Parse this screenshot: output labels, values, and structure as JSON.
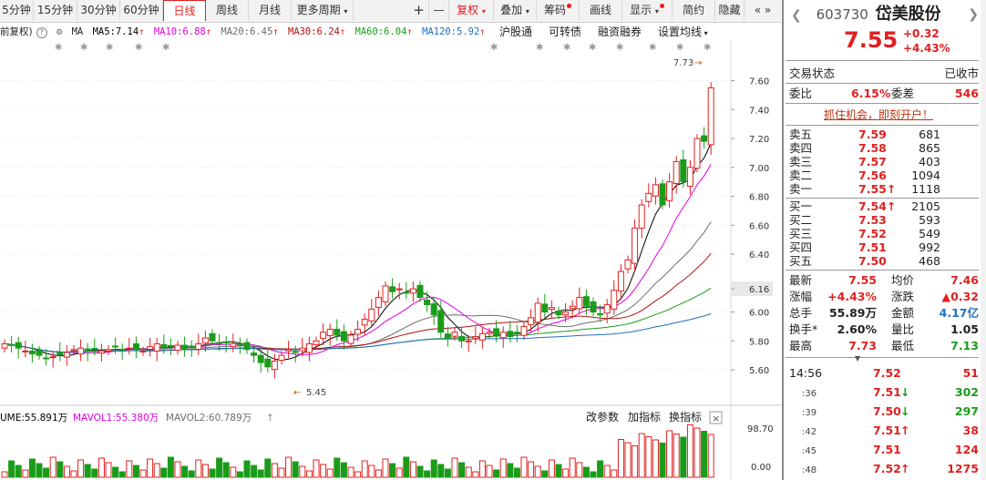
{
  "toolbar": {
    "periods": [
      "5分钟",
      "15分钟",
      "30分钟",
      "60分钟",
      "日线",
      "周线",
      "月线",
      "更多周期"
    ],
    "active_period": "日线",
    "plus": "+",
    "minus": "—",
    "fuquan": "复权",
    "diejia": "叠加",
    "chouma": "筹码",
    "huaxian": "画线",
    "xianshi": "显示",
    "jianyue": "简约",
    "yincang": "隐藏"
  },
  "legend": {
    "fuquan_label": "前复权)",
    "ma": "MA",
    "ma5": "MA5:7.14",
    "ma10": "MA10:6.88",
    "ma20": "MA20:6.45",
    "ma30": "MA30:6.24",
    "ma60": "MA60:6.04",
    "ma120": "MA120:5.92",
    "links": [
      "沪股通",
      "可转债",
      "融资融券",
      "设置均线"
    ],
    "colors": {
      "ma5": "#000000",
      "ma10": "#e000e0",
      "ma20": "#6e6e6e",
      "ma30": "#b01010",
      "ma60": "#1a9c1a",
      "ma120": "#1f6fc0"
    }
  },
  "price_axis": [
    "7.60",
    "7.40",
    "7.20",
    "7.00",
    "6.80",
    "6.60",
    "6.40",
    "6.16",
    "6.00",
    "5.80",
    "5.60"
  ],
  "high_marker": "7.73",
  "low_marker": "5.45",
  "volume_legend": {
    "vol": "UME:55.891万",
    "mavol1": "MAVOL1:55.380万",
    "mavol2": "MAVOL2:60.789万",
    "buttons": [
      "改参数",
      "加指标",
      "换指标"
    ],
    "close": "×",
    "axis_top": "98.70",
    "axis_bottom": "0.00"
  },
  "stock": {
    "code": "603730",
    "name": "岱美股份",
    "price": "7.55",
    "change": "+0.32",
    "change_pct": "+4.43%"
  },
  "status": {
    "label": "交易状态",
    "value": "已收市"
  },
  "weibi": {
    "label1": "委比",
    "value1": "6.15%",
    "label2": "委差",
    "value2": "546"
  },
  "ad_link": "抓住机会，即刻开户！",
  "sell": [
    {
      "label": "卖五",
      "price": "7.59",
      "vol": "681"
    },
    {
      "label": "卖四",
      "price": "7.58",
      "vol": "865"
    },
    {
      "label": "卖三",
      "price": "7.57",
      "vol": "403"
    },
    {
      "label": "卖二",
      "price": "7.56",
      "vol": "1094"
    },
    {
      "label": "卖一",
      "price": "7.55",
      "vol": "1118",
      "arrow": "↑"
    }
  ],
  "buy": [
    {
      "label": "买一",
      "price": "7.54",
      "vol": "2105",
      "arrow": "↑"
    },
    {
      "label": "买二",
      "price": "7.53",
      "vol": "593"
    },
    {
      "label": "买三",
      "price": "7.52",
      "vol": "549"
    },
    {
      "label": "买四",
      "price": "7.51",
      "vol": "992"
    },
    {
      "label": "买五",
      "price": "7.50",
      "vol": "468"
    }
  ],
  "stats": [
    {
      "l1": "最新",
      "v1": "7.55",
      "l2": "均价",
      "v2": "7.46"
    },
    {
      "l1": "涨幅",
      "v1": "+4.43%",
      "l2": "涨跌",
      "v2": "▲0.32"
    },
    {
      "l1": "总手",
      "v1": "55.89万",
      "l2": "金额",
      "v2": "4.17亿"
    },
    {
      "l1": "换手*",
      "v1": "2.60%",
      "l2": "量比",
      "v2": "1.05"
    },
    {
      "l1": "最高",
      "v1": "7.73",
      "l2": "最低",
      "v2": "7.13"
    }
  ],
  "ticks": [
    {
      "time": "14:56",
      "price": "7.52",
      "arrow": "",
      "vol": "51"
    },
    {
      "time": ":36",
      "price": "7.51",
      "arrow": "↓",
      "vol": "302"
    },
    {
      "time": ":39",
      "price": "7.50",
      "arrow": "↓",
      "vol": "297"
    },
    {
      "time": ":42",
      "price": "7.51",
      "arrow": "↑",
      "vol": "38"
    },
    {
      "time": ":45",
      "price": "7.51",
      "arrow": "",
      "vol": "124"
    },
    {
      "time": ":48",
      "price": "7.52",
      "arrow": "↑",
      "vol": "1275"
    }
  ],
  "icons": {
    "prev": "chevron-left-icon",
    "next": "chevron-right-icon",
    "gear": "gear-icon",
    "help": "question-icon"
  }
}
